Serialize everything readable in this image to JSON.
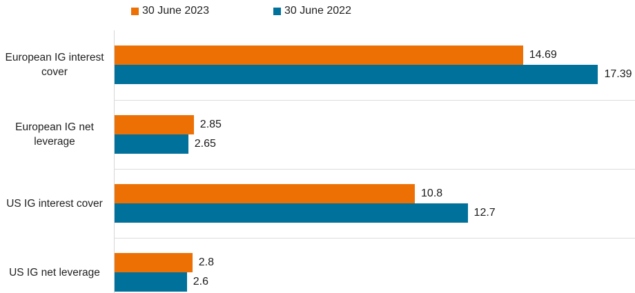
{
  "legend": {
    "items": [
      {
        "label": "30 June 2023",
        "color": "#ED7004"
      },
      {
        "label": "30 June 2022",
        "color": "#00719A"
      }
    ]
  },
  "colors": {
    "series_2023": "#ED7004",
    "series_2022": "#00719A",
    "axis_line": "#D6D6D6",
    "gridline": "#DCDCDC",
    "text": "#1F1F1F"
  },
  "chart_data": {
    "type": "bar",
    "orientation": "horizontal",
    "title": "",
    "xlabel": "",
    "ylabel": "",
    "categories": [
      "European IG interest cover",
      "European IG net leverage",
      "US IG interest cover",
      "US IG net leverage"
    ],
    "series": [
      {
        "name": "30 June 2023",
        "color": "#ED7004",
        "values": [
          14.69,
          2.85,
          10.8,
          2.8
        ]
      },
      {
        "name": "30 June 2022",
        "color": "#00719A",
        "values": [
          17.39,
          2.65,
          12.7,
          2.6
        ]
      }
    ],
    "value_labels": [
      [
        "14.69",
        "2.85",
        "10.8",
        "2.8"
      ],
      [
        "17.39",
        "2.65",
        "12.7",
        "2.6"
      ]
    ],
    "xlim": [
      0,
      18.7
    ],
    "grid": "category-boundary-lines",
    "legend_position": "top",
    "data_labels": "outside-end"
  }
}
